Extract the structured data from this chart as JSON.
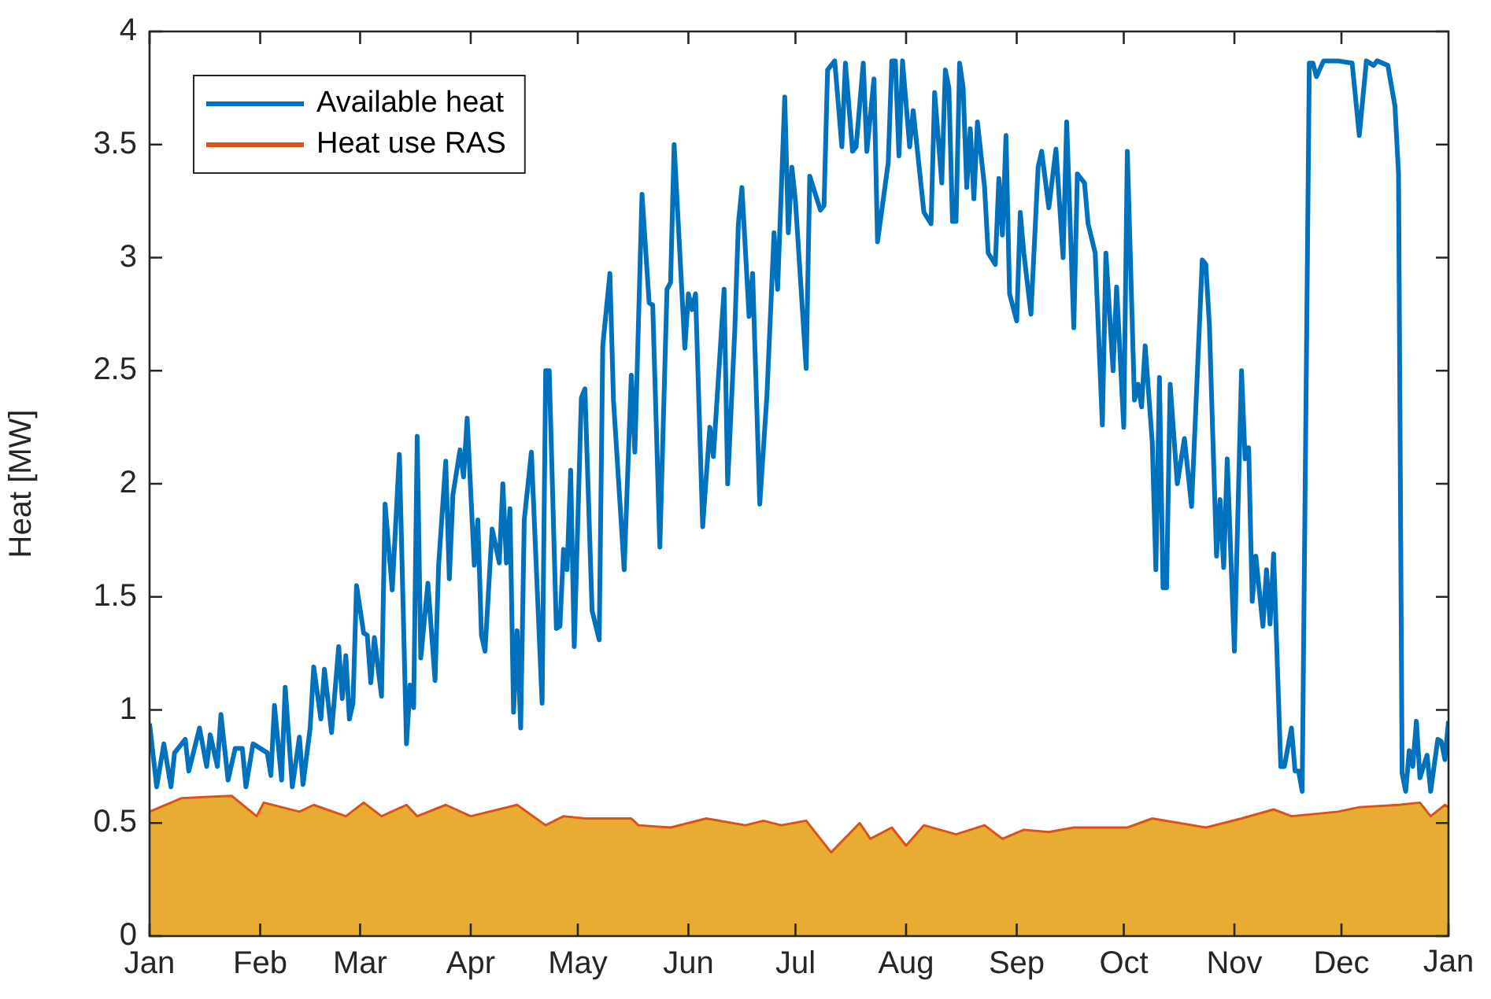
{
  "chart_data": {
    "type": "line",
    "ylabel": "Heat [MW]",
    "legend": "top left",
    "xlim": [
      "--01-01",
      "--12-31"
    ],
    "xticks": [
      {
        "value": "--01-01",
        "label": "Jan"
      },
      {
        "value": "--02-01",
        "label": "Feb"
      },
      {
        "value": "--03-01",
        "label": "Mar"
      },
      {
        "value": "--04-01",
        "label": "Apr"
      },
      {
        "value": "--05-01",
        "label": "May"
      },
      {
        "value": "--06-01",
        "label": "Jun"
      },
      {
        "value": "--07-01",
        "label": "Jul"
      },
      {
        "value": "--08-01",
        "label": "Aug"
      },
      {
        "value": "--09-01",
        "label": "Sep"
      },
      {
        "value": "--10-01",
        "label": "Oct"
      },
      {
        "value": "--11-01",
        "label": "Nov"
      },
      {
        "value": "--12-01",
        "label": "Dec"
      }
    ],
    "annotations": [
      "Jan"
    ],
    "ylim": [
      0,
      4
    ],
    "yticks": [
      0,
      0.5,
      1,
      1.5,
      2,
      2.5,
      3,
      3.5,
      4
    ],
    "series": [
      {
        "name": "Available heat",
        "type": "line",
        "color": "#0072bd",
        "x": [
          "--01-01",
          "--01-03",
          "--01-05",
          "--01-07",
          "--01-08",
          "--01-11",
          "--01-12",
          "--01-15",
          "--01-17",
          "--01-18",
          "--01-20",
          "--01-21",
          "--01-23",
          "--01-25",
          "--01-27",
          "--01-28",
          "--01-30",
          "--02-03",
          "--02-04",
          "--02-05",
          "--02-07",
          "--02-08",
          "--02-10",
          "--02-12",
          "--02-13",
          "--02-15",
          "--02-16",
          "--02-18",
          "--02-19",
          "--02-21",
          "--02-23",
          "--02-24",
          "--02-25",
          "--02-26",
          "--02-27",
          "--02-28",
          "--03-02",
          "--03-03",
          "--03-04",
          "--03-05",
          "--03-07",
          "--03-08",
          "--03-10",
          "--03-12",
          "--03-14",
          "--03-15",
          "--03-16",
          "--03-17",
          "--03-18",
          "--03-20",
          "--03-22",
          "--03-23",
          "--03-25",
          "--03-26",
          "--03-27",
          "--03-29",
          "--03-30",
          "--03-31",
          "--04-02",
          "--04-03",
          "--04-04",
          "--04-05",
          "--04-07",
          "--04-09",
          "--04-10",
          "--04-11",
          "--04-12",
          "--04-13",
          "--04-14",
          "--04-15",
          "--04-16",
          "--04-18",
          "--04-21",
          "--04-22",
          "--04-23",
          "--04-25",
          "--04-26",
          "--04-27",
          "--04-28",
          "--04-29",
          "--04-30",
          "--05-02",
          "--05-03",
          "--05-05",
          "--05-07",
          "--05-08",
          "--05-10",
          "--05-11",
          "--05-14",
          "--05-16",
          "--05-17",
          "--05-19",
          "--05-21",
          "--05-22",
          "--05-24",
          "--05-26",
          "--05-27",
          "--05-28",
          "--05-31",
          "--06-01",
          "--06-02",
          "--06-03",
          "--06-05",
          "--06-07",
          "--06-08",
          "--06-11",
          "--06-12",
          "--06-14",
          "--06-15",
          "--06-16",
          "--06-18",
          "--06-19",
          "--06-21",
          "--06-23",
          "--06-25",
          "--06-26",
          "--06-28",
          "--06-29",
          "--06-30",
          "--07-01",
          "--07-04",
          "--07-05",
          "--07-08",
          "--07-09",
          "--07-10",
          "--07-12",
          "--07-14",
          "--07-15",
          "--07-17",
          "--07-18",
          "--07-20",
          "--07-21",
          "--07-23",
          "--07-24",
          "--07-27",
          "--07-28",
          "--07-29",
          "--07-30",
          "--07-31",
          "--08-02",
          "--08-03",
          "--08-06",
          "--08-08",
          "--08-09",
          "--08-11",
          "--08-12",
          "--08-13",
          "--08-14",
          "--08-15",
          "--08-16",
          "--08-17",
          "--08-18",
          "--08-19",
          "--08-20",
          "--08-21",
          "--08-23",
          "--08-24",
          "--08-26",
          "--08-27",
          "--08-28",
          "--08-29",
          "--08-30",
          "--09-01",
          "--09-02",
          "--09-03",
          "--09-05",
          "--09-07",
          "--09-08",
          "--09-10",
          "--09-12",
          "--09-14",
          "--09-15",
          "--09-17",
          "--09-18",
          "--09-20",
          "--09-21",
          "--09-23",
          "--09-25",
          "--09-26",
          "--09-28",
          "--09-29",
          "--10-01",
          "--10-02",
          "--10-04",
          "--10-05",
          "--10-06",
          "--10-07",
          "--10-09",
          "--10-10",
          "--10-11",
          "--10-12",
          "--10-13",
          "--10-14",
          "--10-16",
          "--10-18",
          "--10-20",
          "--10-23",
          "--10-24",
          "--10-25",
          "--10-27",
          "--10-28",
          "--10-29",
          "--10-30",
          "--11-01",
          "--11-03",
          "--11-04",
          "--11-05",
          "--11-06",
          "--11-07",
          "--11-09",
          "--11-10",
          "--11-11",
          "--11-12",
          "--11-14",
          "--11-15",
          "--11-17",
          "--11-18",
          "--11-19",
          "--11-20",
          "--11-22",
          "--11-23",
          "--11-24",
          "--11-26",
          "--11-30",
          "--12-04",
          "--12-06",
          "--12-08",
          "--12-10",
          "--12-11",
          "--12-14",
          "--12-16",
          "--12-17",
          "--12-18",
          "--12-19",
          "--12-20",
          "--12-21",
          "--12-22",
          "--12-23",
          "--12-25",
          "--12-26",
          "--12-28",
          "--12-29",
          "--12-30",
          "--12-31"
        ],
        "values": [
          0.94,
          0.66,
          0.85,
          0.66,
          0.81,
          0.87,
          0.73,
          0.92,
          0.75,
          0.89,
          0.75,
          0.98,
          0.69,
          0.83,
          0.83,
          0.66,
          0.85,
          0.81,
          0.71,
          1.02,
          0.69,
          1.1,
          0.66,
          0.88,
          0.67,
          0.92,
          1.19,
          0.96,
          1.18,
          0.9,
          1.28,
          1.05,
          1.24,
          0.96,
          1.03,
          1.55,
          1.34,
          1.33,
          1.12,
          1.32,
          1.06,
          1.91,
          1.53,
          2.13,
          0.85,
          1.11,
          1.01,
          2.21,
          1.23,
          1.56,
          1.13,
          1.64,
          2.1,
          1.58,
          1.95,
          2.15,
          2.03,
          2.29,
          1.64,
          1.84,
          1.33,
          1.26,
          1.8,
          1.65,
          2.0,
          1.65,
          1.89,
          0.99,
          1.35,
          0.92,
          1.84,
          2.14,
          1.03,
          2.5,
          2.5,
          1.36,
          1.37,
          1.71,
          1.62,
          2.06,
          1.28,
          2.38,
          2.42,
          1.44,
          1.31,
          2.61,
          2.93,
          2.37,
          1.62,
          2.48,
          2.14,
          3.28,
          2.8,
          2.79,
          1.72,
          2.86,
          2.89,
          3.5,
          2.6,
          2.84,
          2.77,
          2.84,
          1.81,
          2.25,
          2.12,
          2.86,
          2.0,
          2.68,
          3.15,
          3.31,
          2.74,
          2.93,
          1.91,
          2.39,
          3.11,
          2.86,
          3.71,
          3.11,
          3.4,
          3.25,
          2.51,
          3.36,
          3.21,
          3.23,
          3.83,
          3.87,
          3.49,
          3.86,
          3.47,
          3.49,
          3.86,
          3.47,
          3.79,
          3.07,
          3.42,
          3.87,
          3.87,
          3.45,
          3.87,
          3.49,
          3.65,
          3.2,
          3.15,
          3.73,
          3.33,
          3.83,
          3.75,
          3.16,
          3.16,
          3.86,
          3.75,
          3.31,
          3.57,
          3.26,
          3.6,
          3.31,
          3.02,
          2.97,
          3.35,
          3.1,
          3.54,
          2.84,
          2.72,
          3.2,
          3.02,
          2.75,
          3.4,
          3.47,
          3.22,
          3.48,
          3.0,
          3.6,
          2.69,
          3.37,
          3.33,
          3.15,
          3.02,
          2.26,
          3.02,
          2.5,
          2.87,
          2.25,
          3.47,
          2.37,
          2.44,
          2.34,
          2.61,
          2.18,
          1.62,
          2.47,
          1.54,
          1.54,
          2.44,
          2.0,
          2.2,
          1.9,
          2.99,
          2.97,
          2.7,
          1.68,
          1.93,
          1.63,
          2.11,
          1.26,
          2.5,
          2.11,
          2.16,
          1.48,
          1.68,
          1.37,
          1.62,
          1.38,
          1.69,
          0.75,
          0.75,
          0.92,
          0.73,
          0.73,
          0.64,
          3.86,
          3.86,
          3.8,
          3.87,
          3.87,
          3.86,
          3.54,
          3.87,
          3.85,
          3.87,
          3.85,
          3.67,
          3.37,
          0.72,
          0.64,
          0.82,
          0.75,
          0.95,
          0.7,
          0.8,
          0.64,
          0.87,
          0.86,
          0.78,
          0.95
        ]
      },
      {
        "name": "Heat use RAS",
        "type": "area",
        "color": "#d95319",
        "x": [
          "--01-01",
          "--01-10",
          "--01-24",
          "--01-31",
          "--02-02",
          "--02-12",
          "--02-16",
          "--02-25",
          "--03-02",
          "--03-07",
          "--03-14",
          "--03-17",
          "--03-25",
          "--04-01",
          "--04-14",
          "--04-22",
          "--04-27",
          "--05-03",
          "--05-16",
          "--05-18",
          "--05-27",
          "--06-06",
          "--06-17",
          "--06-22",
          "--06-27",
          "--07-04",
          "--07-11",
          "--07-19",
          "--07-22",
          "--07-28",
          "--08-01",
          "--08-06",
          "--08-15",
          "--08-23",
          "--08-28",
          "--09-03",
          "--09-10",
          "--09-17",
          "--10-02",
          "--10-09",
          "--10-24",
          "--11-03",
          "--11-12",
          "--11-17",
          "--11-30",
          "--12-06",
          "--12-17",
          "--12-23",
          "--12-26",
          "--12-30",
          "--12-31"
        ],
        "values": [
          0.55,
          0.61,
          0.62,
          0.53,
          0.59,
          0.55,
          0.58,
          0.53,
          0.59,
          0.53,
          0.58,
          0.53,
          0.58,
          0.53,
          0.58,
          0.49,
          0.53,
          0.52,
          0.52,
          0.49,
          0.48,
          0.52,
          0.49,
          0.51,
          0.49,
          0.51,
          0.37,
          0.5,
          0.43,
          0.48,
          0.4,
          0.49,
          0.45,
          0.49,
          0.43,
          0.47,
          0.46,
          0.48,
          0.48,
          0.52,
          0.48,
          0.52,
          0.56,
          0.53,
          0.55,
          0.57,
          0.58,
          0.59,
          0.53,
          0.58,
          0.57
        ]
      }
    ]
  }
}
